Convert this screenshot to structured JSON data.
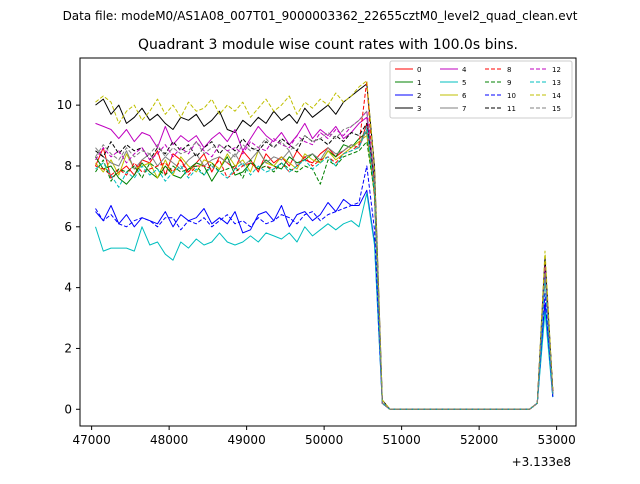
{
  "chart_data": {
    "type": "line",
    "suptitle": "Data file: modeM0/AS1A08_007T01_9000003362_22655cztM0_level2_quad_clean.evt",
    "title": "Quadrant 3 module wise count rates with 100.0s bins.",
    "xlabel": "",
    "ylabel": "",
    "x_offset_label": "+3.133e8",
    "xlim": [
      46850,
      53250
    ],
    "ylim": [
      -0.55,
      11.55
    ],
    "xticks": [
      47000,
      48000,
      49000,
      50000,
      51000,
      52000,
      53000
    ],
    "xtick_labels": [
      "47000",
      "48000",
      "49000",
      "50000",
      "51000",
      "52000",
      "53000"
    ],
    "yticks": [
      0,
      2,
      4,
      6,
      8,
      10
    ],
    "ytick_labels": [
      "0",
      "2",
      "4",
      "6",
      "8",
      "10"
    ],
    "grid": false,
    "legend_position": "top-right",
    "x": [
      47050,
      47150,
      47250,
      47350,
      47450,
      47550,
      47650,
      47750,
      47850,
      47950,
      48050,
      48150,
      48250,
      48350,
      48450,
      48550,
      48650,
      48750,
      48850,
      48950,
      49050,
      49150,
      49250,
      49350,
      49450,
      49550,
      49650,
      49750,
      49850,
      49950,
      50050,
      50150,
      50250,
      50350,
      50450,
      50550,
      50650,
      50750,
      50850,
      50950,
      51050,
      51150,
      51250,
      51350,
      51450,
      51550,
      51650,
      51750,
      51850,
      51950,
      52050,
      52150,
      52250,
      52350,
      52450,
      52550,
      52650,
      52750,
      52850,
      52950
    ],
    "series": [
      {
        "name": "0",
        "color": "#ff0000",
        "dash": "solid",
        "values": [
          8.0,
          8.6,
          7.6,
          7.8,
          8.0,
          7.7,
          8.2,
          8.1,
          8.5,
          7.7,
          8.4,
          8.2,
          7.8,
          8.1,
          8.4,
          7.8,
          8.3,
          8.1,
          7.9,
          8.5,
          8.2,
          7.8,
          8.4,
          8.1,
          8.3,
          8.0,
          8.5,
          8.2,
          8.1,
          8.4,
          8.6,
          8.3,
          8.5,
          8.7,
          8.6,
          9.4,
          7.0,
          0.2,
          0,
          0,
          0,
          0,
          0,
          0,
          0,
          0,
          0,
          0,
          0,
          0,
          0,
          0,
          0,
          0,
          0,
          0,
          0,
          0.2,
          4.8,
          0.6
        ]
      },
      {
        "name": "1",
        "color": "#008000",
        "dash": "solid",
        "values": [
          8.3,
          7.9,
          8.0,
          7.6,
          7.4,
          7.7,
          8.1,
          7.8,
          7.6,
          8.0,
          7.7,
          7.6,
          7.9,
          8.1,
          8.0,
          7.5,
          7.9,
          8.3,
          7.7,
          7.8,
          8.1,
          7.9,
          8.2,
          8.0,
          7.9,
          8.3,
          8.1,
          8.2,
          8.4,
          8.1,
          8.5,
          8.3,
          8.7,
          8.6,
          8.9,
          9.1,
          7.2,
          0.2,
          0,
          0,
          0,
          0,
          0,
          0,
          0,
          0,
          0,
          0,
          0,
          0,
          0,
          0,
          0,
          0,
          0,
          0,
          0,
          0.2,
          4.5,
          0.5
        ]
      },
      {
        "name": "2",
        "color": "#0000ff",
        "dash": "solid",
        "values": [
          6.5,
          6.2,
          6.7,
          6.1,
          6.4,
          6.0,
          6.3,
          6.2,
          6.1,
          6.5,
          6.0,
          6.4,
          6.2,
          6.3,
          6.6,
          6.1,
          6.3,
          6.1,
          6.5,
          5.8,
          5.9,
          6.4,
          6.5,
          6.2,
          6.7,
          6.0,
          6.4,
          6.5,
          6.2,
          6.4,
          6.8,
          6.5,
          6.9,
          6.7,
          6.7,
          7.2,
          5.5,
          0.2,
          0,
          0,
          0,
          0,
          0,
          0,
          0,
          0,
          0,
          0,
          0,
          0,
          0,
          0,
          0,
          0,
          0,
          0,
          0,
          0.2,
          3.5,
          0.4
        ]
      },
      {
        "name": "3",
        "color": "#000000",
        "dash": "solid",
        "values": [
          10.0,
          10.2,
          9.7,
          10.0,
          9.4,
          9.6,
          9.9,
          9.5,
          9.7,
          9.4,
          9.2,
          9.6,
          9.5,
          9.7,
          9.3,
          9.5,
          9.8,
          9.2,
          9.1,
          9.5,
          9.3,
          9.6,
          9.4,
          9.8,
          9.5,
          9.7,
          9.4,
          9.9,
          9.6,
          9.8,
          10.0,
          9.7,
          10.1,
          10.3,
          10.5,
          10.7,
          8.0,
          0.3,
          0,
          0,
          0,
          0,
          0,
          0,
          0,
          0,
          0,
          0,
          0,
          0,
          0,
          0,
          0,
          0,
          0,
          0,
          0,
          0.2,
          5.0,
          0.6
        ]
      },
      {
        "name": "4",
        "color": "#bf00bf",
        "dash": "solid",
        "values": [
          9.4,
          9.3,
          9.2,
          8.9,
          9.2,
          8.8,
          9.1,
          9.0,
          8.6,
          9.3,
          8.7,
          9.0,
          8.8,
          9.0,
          8.6,
          8.9,
          9.1,
          8.8,
          9.2,
          8.5,
          8.9,
          9.3,
          9.0,
          8.8,
          9.1,
          8.7,
          9.0,
          9.4,
          8.9,
          9.2,
          9.0,
          9.3,
          8.9,
          9.1,
          9.4,
          9.6,
          7.5,
          0.2,
          0,
          0,
          0,
          0,
          0,
          0,
          0,
          0,
          0,
          0,
          0,
          0,
          0,
          0,
          0,
          0,
          0,
          0,
          0,
          0.2,
          4.6,
          0.5
        ]
      },
      {
        "name": "5",
        "color": "#00bfbf",
        "dash": "solid",
        "values": [
          6.0,
          5.2,
          5.3,
          5.3,
          5.3,
          5.2,
          6.0,
          5.4,
          5.5,
          5.1,
          4.9,
          5.5,
          5.3,
          5.6,
          5.4,
          5.5,
          5.8,
          5.5,
          5.4,
          5.5,
          5.7,
          5.5,
          5.8,
          5.7,
          5.6,
          5.8,
          5.5,
          6.0,
          5.7,
          5.9,
          6.1,
          5.9,
          6.1,
          6.2,
          6.0,
          7.1,
          5.4,
          0.2,
          0,
          0,
          0,
          0,
          0,
          0,
          0,
          0,
          0,
          0,
          0,
          0,
          0,
          0,
          0,
          0,
          0,
          0,
          0,
          0.2,
          3.2,
          0.4
        ]
      },
      {
        "name": "6",
        "color": "#bfbf00",
        "dash": "solid",
        "values": [
          8.1,
          7.8,
          8.2,
          7.7,
          8.4,
          7.9,
          8.0,
          8.1,
          7.6,
          8.2,
          7.7,
          8.3,
          8.0,
          7.8,
          8.2,
          8.1,
          7.9,
          8.4,
          8.0,
          8.2,
          7.8,
          8.5,
          8.1,
          8.0,
          8.3,
          8.1,
          7.9,
          8.4,
          8.2,
          8.1,
          8.5,
          8.2,
          8.4,
          8.6,
          8.8,
          9.0,
          7.1,
          0.2,
          0,
          0,
          0,
          0,
          0,
          0,
          0,
          0,
          0,
          0,
          0,
          0,
          0,
          0,
          0,
          0,
          0,
          0,
          0,
          0.2,
          4.7,
          0.5
        ]
      },
      {
        "name": "7",
        "color": "#808080",
        "dash": "solid",
        "values": [
          8.6,
          8.3,
          8.1,
          8.0,
          8.5,
          7.9,
          8.2,
          8.4,
          8.0,
          8.3,
          8.1,
          7.9,
          8.2,
          8.4,
          8.0,
          8.2,
          8.3,
          8.1,
          8.4,
          8.0,
          8.2,
          8.5,
          8.1,
          8.3,
          8.2,
          8.5,
          8.0,
          8.3,
          8.4,
          8.2,
          8.6,
          8.4,
          8.5,
          8.7,
          8.6,
          9.2,
          7.3,
          0.2,
          0,
          0,
          0,
          0,
          0,
          0,
          0,
          0,
          0,
          0,
          0,
          0,
          0,
          0,
          0,
          0,
          0,
          0,
          0,
          0.2,
          4.6,
          0.5
        ]
      },
      {
        "name": "8",
        "color": "#ff0000",
        "dash": "dash",
        "values": [
          8.0,
          7.9,
          7.7,
          7.9,
          7.7,
          8.1,
          7.8,
          7.9,
          8.0,
          8.1,
          7.8,
          8.2,
          7.7,
          8.0,
          8.0,
          7.9,
          8.2,
          7.6,
          7.8,
          8.0,
          8.1,
          7.9,
          8.0,
          7.9,
          8.1,
          7.8,
          8.0,
          8.3,
          8.0,
          8.2,
          8.3,
          8.1,
          8.4,
          8.5,
          8.7,
          10.8,
          7.0,
          0.2,
          0,
          0,
          0,
          0,
          0,
          0,
          0,
          0,
          0,
          0,
          0,
          0,
          0,
          0,
          0,
          0,
          0,
          0,
          0,
          0.2,
          4.8,
          0.6
        ]
      },
      {
        "name": "9",
        "color": "#008000",
        "dash": "dash",
        "values": [
          7.8,
          8.2,
          7.5,
          7.9,
          7.8,
          8.0,
          7.6,
          8.1,
          7.9,
          7.7,
          8.0,
          7.8,
          7.9,
          8.0,
          7.7,
          8.1,
          7.8,
          7.9,
          8.0,
          7.6,
          8.2,
          7.9,
          8.0,
          7.8,
          8.1,
          7.9,
          7.8,
          8.0,
          7.9,
          7.4,
          8.2,
          8.0,
          8.3,
          8.4,
          8.5,
          8.8,
          7.1,
          0.2,
          0,
          0,
          0,
          0,
          0,
          0,
          0,
          0,
          0,
          0,
          0,
          0,
          0,
          0,
          0,
          0,
          0,
          0,
          0,
          0.2,
          4.4,
          0.5
        ]
      },
      {
        "name": "10",
        "color": "#0000ff",
        "dash": "dash",
        "values": [
          6.6,
          6.2,
          6.4,
          6.1,
          6.0,
          6.2,
          6.3,
          6.2,
          6.0,
          6.3,
          6.3,
          5.9,
          6.2,
          6.1,
          6.3,
          6.0,
          6.2,
          6.4,
          6.1,
          6.2,
          6.0,
          6.3,
          6.1,
          6.2,
          6.4,
          6.3,
          6.1,
          6.4,
          6.5,
          6.2,
          6.4,
          6.5,
          6.6,
          6.7,
          6.8,
          8.0,
          5.9,
          0.2,
          0,
          0,
          0,
          0,
          0,
          0,
          0,
          0,
          0,
          0,
          0,
          0,
          0,
          0,
          0,
          0,
          0,
          0,
          0,
          0.2,
          3.8,
          0.4
        ]
      },
      {
        "name": "11",
        "color": "#000000",
        "dash": "dash",
        "values": [
          8.5,
          8.3,
          8.8,
          8.4,
          8.7,
          8.5,
          8.6,
          8.2,
          8.6,
          8.4,
          8.8,
          8.5,
          8.7,
          8.3,
          8.6,
          8.8,
          8.4,
          8.7,
          8.5,
          8.9,
          8.6,
          8.5,
          8.8,
          8.6,
          8.9,
          8.7,
          8.5,
          9.0,
          8.8,
          8.9,
          8.7,
          9.0,
          8.8,
          9.1,
          9.0,
          9.4,
          7.6,
          0.2,
          0,
          0,
          0,
          0,
          0,
          0,
          0,
          0,
          0,
          0,
          0,
          0,
          0,
          0,
          0,
          0,
          0,
          0,
          0,
          0.2,
          4.9,
          0.6
        ]
      },
      {
        "name": "12",
        "color": "#bf00bf",
        "dash": "dash",
        "values": [
          8.2,
          8.6,
          8.3,
          8.5,
          8.1,
          8.4,
          8.6,
          8.2,
          8.4,
          8.7,
          8.3,
          8.6,
          8.4,
          8.8,
          8.5,
          8.3,
          8.7,
          8.5,
          8.6,
          8.4,
          8.8,
          8.6,
          8.5,
          8.9,
          8.7,
          8.6,
          9.0,
          8.8,
          8.7,
          9.1,
          8.9,
          9.2,
          9.0,
          9.3,
          9.5,
          9.8,
          7.7,
          0.2,
          0,
          0,
          0,
          0,
          0,
          0,
          0,
          0,
          0,
          0,
          0,
          0,
          0,
          0,
          0,
          0,
          0,
          0,
          0,
          0.2,
          4.7,
          0.5
        ]
      },
      {
        "name": "13",
        "color": "#00bfbf",
        "dash": "dash",
        "values": [
          7.9,
          8.1,
          7.7,
          7.3,
          7.8,
          7.6,
          8.0,
          7.7,
          7.9,
          7.5,
          7.8,
          8.0,
          7.6,
          7.9,
          7.7,
          8.0,
          7.8,
          7.6,
          7.9,
          8.1,
          7.7,
          8.0,
          7.8,
          7.9,
          8.1,
          7.8,
          8.0,
          8.2,
          7.9,
          8.1,
          8.3,
          8.0,
          8.4,
          8.5,
          8.6,
          9.3,
          7.2,
          0.2,
          0,
          0,
          0,
          0,
          0,
          0,
          0,
          0,
          0,
          0,
          0,
          0,
          0,
          0,
          0,
          0,
          0,
          0,
          0,
          0.2,
          4.3,
          0.5
        ]
      },
      {
        "name": "14",
        "color": "#bfbf00",
        "dash": "dash",
        "values": [
          10.1,
          10.3,
          10.1,
          9.4,
          9.8,
          10.0,
          9.5,
          9.8,
          10.2,
          9.7,
          10.0,
          9.6,
          10.1,
          9.8,
          9.9,
          10.2,
          9.7,
          10.0,
          9.8,
          10.1,
          9.6,
          9.9,
          10.2,
          9.8,
          10.0,
          10.3,
          9.7,
          10.1,
          9.9,
          10.2,
          10.0,
          10.4,
          10.1,
          10.3,
          10.6,
          10.8,
          7.9,
          0.3,
          0,
          0,
          0,
          0,
          0,
          0,
          0,
          0,
          0,
          0,
          0,
          0,
          0,
          0,
          0,
          0,
          0,
          0,
          0,
          0.2,
          5.2,
          0.6
        ]
      },
      {
        "name": "15",
        "color": "#808080",
        "dash": "dash",
        "values": [
          8.3,
          8.7,
          8.4,
          8.2,
          8.6,
          8.3,
          8.5,
          8.4,
          8.7,
          8.3,
          8.6,
          8.4,
          8.5,
          8.8,
          8.4,
          8.6,
          8.7,
          8.5,
          8.3,
          8.7,
          8.5,
          8.6,
          8.9,
          8.6,
          8.8,
          8.5,
          8.7,
          9.0,
          8.8,
          8.9,
          9.1,
          8.9,
          9.2,
          9.3,
          9.5,
          9.8,
          7.6,
          0.2,
          0,
          0,
          0,
          0,
          0,
          0,
          0,
          0,
          0,
          0,
          0,
          0,
          0,
          0,
          0,
          0,
          0,
          0,
          0,
          0.2,
          4.5,
          0.5
        ]
      }
    ]
  }
}
